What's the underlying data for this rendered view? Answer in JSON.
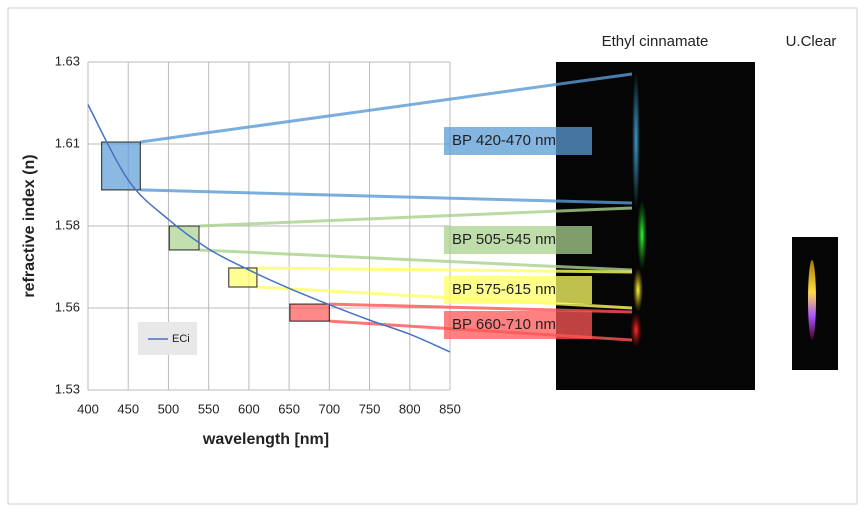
{
  "chart_data": {
    "type": "line",
    "x_label": "wavelength [nm]",
    "y_label": "refractive index (n)",
    "x": [
      400,
      450,
      500,
      550,
      600,
      650,
      700,
      750,
      800,
      850
    ],
    "series": [
      {
        "name": "ECi",
        "color": "#4472c4",
        "values": [
          1.617,
          1.594,
          1.582,
          1.573,
          1.5666,
          1.561,
          1.556,
          1.5513,
          1.547,
          1.5416
        ]
      }
    ],
    "xlim": [
      400,
      850
    ],
    "xticks": [
      400,
      450,
      500,
      550,
      600,
      650,
      700,
      750,
      800,
      850
    ],
    "ylim": [
      1.53,
      1.63
    ],
    "yticks": [
      1.53,
      {
        "value": 1.555,
        "label": "1.56"
      },
      1.58,
      {
        "value": 1.605,
        "label": "1.61"
      },
      1.63
    ],
    "grid": true,
    "bands": [
      {
        "label": "BP 420-470 nm",
        "color": "#5b9bd5",
        "x_range": [
          417,
          465
        ],
        "y_range": [
          1.591,
          1.6056
        ]
      },
      {
        "label": "BP 505-545 nm",
        "color": "#a9d18e",
        "x_range": [
          501,
          538
        ],
        "y_range": [
          1.5727,
          1.58
        ]
      },
      {
        "label": "BP 575-615 nm",
        "color": "#ffff66",
        "x_range": [
          575,
          610
        ],
        "y_range": [
          1.5614,
          1.5672
        ]
      },
      {
        "label": "BP 660-710 nm",
        "color": "#ff5555",
        "x_range": [
          651,
          700
        ],
        "y_range": [
          1.551,
          1.5562
        ]
      }
    ],
    "image_titles": [
      "Ethyl cinnamate",
      "U.Clear"
    ]
  }
}
